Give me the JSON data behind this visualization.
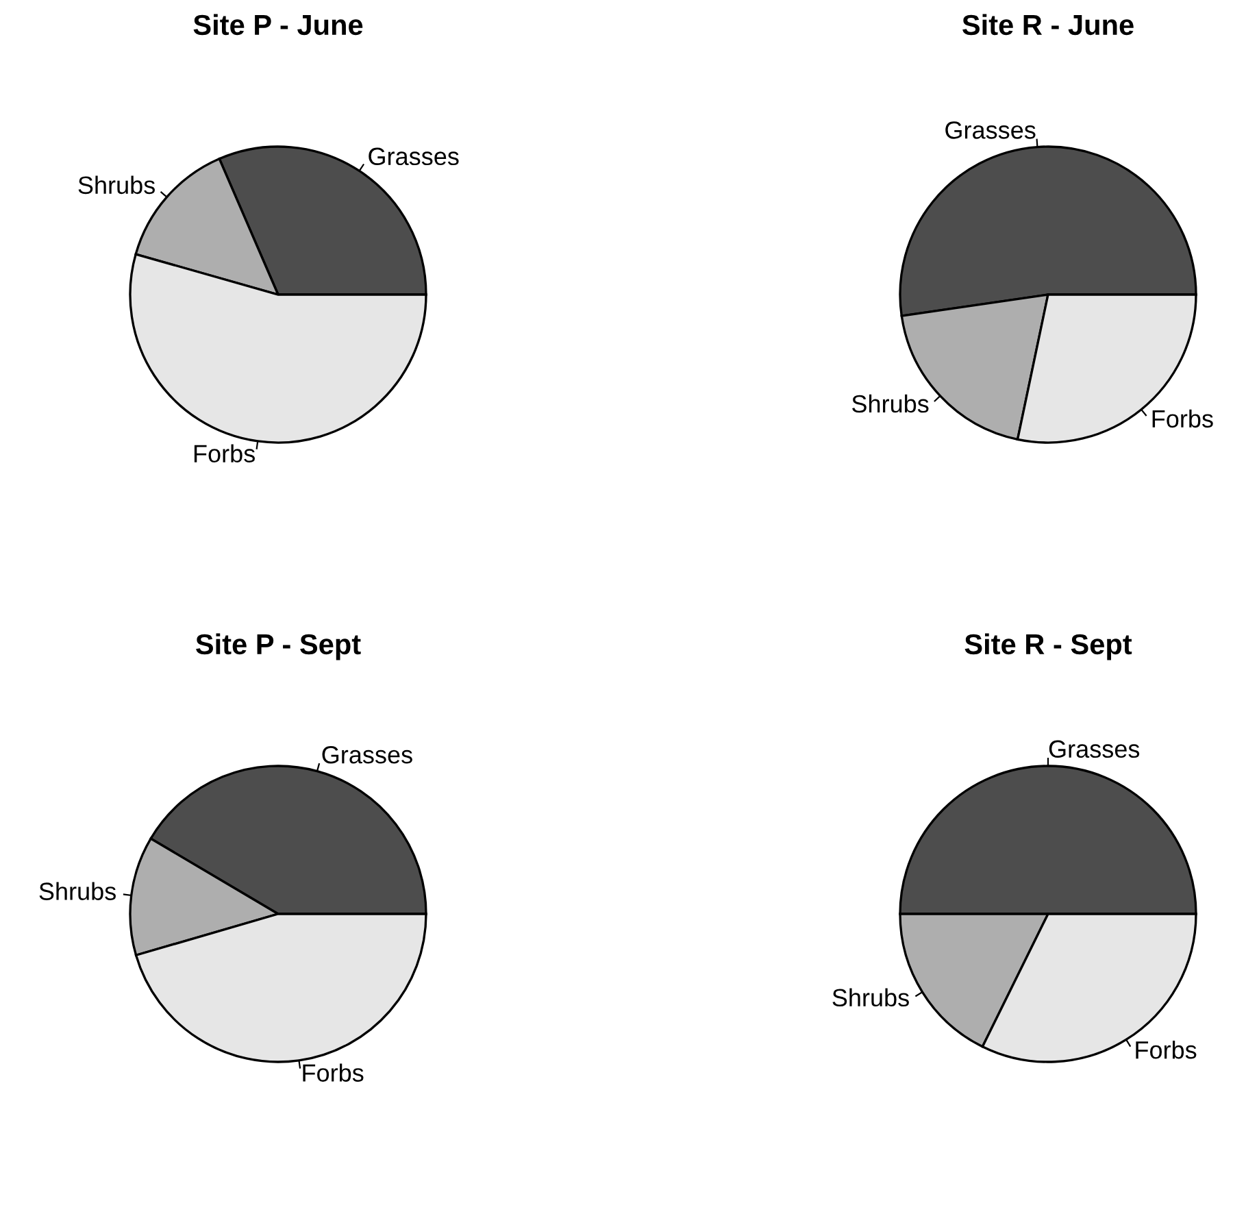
{
  "chart_data": [
    {
      "type": "pie",
      "title": "Site P - June",
      "categories": [
        "Grasses",
        "Shrubs",
        "Forbs"
      ],
      "values": [
        31.5,
        14.1,
        54.4
      ],
      "colors": [
        "#4d4d4d",
        "#aeaeae",
        "#e6e6e6"
      ]
    },
    {
      "type": "pie",
      "title": "Site R - June",
      "categories": [
        "Grasses",
        "Shrubs",
        "Forbs"
      ],
      "values": [
        52.3,
        19.4,
        28.3
      ],
      "colors": [
        "#4d4d4d",
        "#aeaeae",
        "#e6e6e6"
      ]
    },
    {
      "type": "pie",
      "title": "Site P - Sept",
      "categories": [
        "Grasses",
        "Shrubs",
        "Forbs"
      ],
      "values": [
        41.5,
        13.0,
        45.5
      ],
      "colors": [
        "#4d4d4d",
        "#aeaeae",
        "#e6e6e6"
      ]
    },
    {
      "type": "pie",
      "title": "Site R - Sept",
      "categories": [
        "Grasses",
        "Shrubs",
        "Forbs"
      ],
      "values": [
        50.0,
        17.7,
        32.3
      ],
      "colors": [
        "#4d4d4d",
        "#aeaeae",
        "#e6e6e6"
      ]
    }
  ]
}
